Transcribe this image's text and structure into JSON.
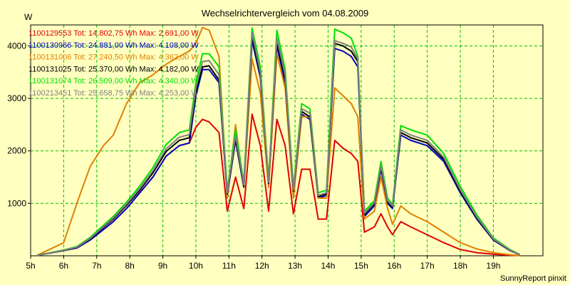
{
  "chart_data": {
    "type": "line",
    "title": "Wechselrichtervergleich vom 04.08.2009",
    "ylabel": "W",
    "xlabel": "",
    "footer": "SunnyReport pinxit",
    "ylim": [
      0,
      4400
    ],
    "xlim": [
      5,
      20.5
    ],
    "y_ticks": [
      1000,
      2000,
      3000,
      4000
    ],
    "x_ticks": [
      {
        "x": 5,
        "label": "5h"
      },
      {
        "x": 6,
        "label": "6h"
      },
      {
        "x": 7,
        "label": "7h"
      },
      {
        "x": 8,
        "label": "8h"
      },
      {
        "x": 9,
        "label": "9h"
      },
      {
        "x": 10,
        "label": "10h"
      },
      {
        "x": 11,
        "label": "11h"
      },
      {
        "x": 12,
        "label": "12h"
      },
      {
        "x": 13,
        "label": "13h"
      },
      {
        "x": 14,
        "label": "14h"
      },
      {
        "x": 15,
        "label": "15h"
      },
      {
        "x": 16,
        "label": "16h"
      },
      {
        "x": 17,
        "label": "17h"
      },
      {
        "x": 18,
        "label": "18h"
      },
      {
        "x": 19,
        "label": "19h"
      }
    ],
    "grid": true,
    "legend_position": "top-left",
    "series": [
      {
        "name": "1100129553 Tot: 14.802,75 Wh Max: 2.691,00 W",
        "color": "#e00000",
        "x": [
          5.2,
          6.0,
          6.4,
          6.8,
          7.2,
          7.5,
          7.9,
          8.3,
          8.7,
          9.1,
          9.5,
          9.8,
          10.0,
          10.2,
          10.4,
          10.7,
          10.95,
          11.2,
          11.45,
          11.7,
          11.95,
          12.2,
          12.45,
          12.7,
          12.95,
          13.2,
          13.45,
          13.7,
          13.95,
          14.2,
          14.45,
          14.7,
          14.9,
          15.1,
          15.4,
          15.6,
          15.8,
          15.95,
          16.2,
          16.5,
          17.0,
          17.5,
          18.0,
          18.5,
          19.0,
          19.5,
          19.8
        ],
        "y": [
          10,
          100,
          150,
          300,
          500,
          650,
          900,
          1200,
          1500,
          1900,
          2100,
          2150,
          2450,
          2600,
          2550,
          2350,
          850,
          1500,
          900,
          2700,
          2100,
          850,
          2600,
          2100,
          800,
          1650,
          1650,
          700,
          700,
          2200,
          2050,
          1950,
          1800,
          450,
          550,
          800,
          550,
          400,
          650,
          550,
          400,
          250,
          120,
          60,
          30,
          10,
          5
        ]
      },
      {
        "name": "1100130966 Tot: 24.881,00 Wh Max: 4.108,00 W",
        "color": "#0000c0",
        "x": [
          5.2,
          6.0,
          6.4,
          6.8,
          7.2,
          7.5,
          7.9,
          8.3,
          8.7,
          9.1,
          9.5,
          9.8,
          10.0,
          10.2,
          10.4,
          10.7,
          10.95,
          11.2,
          11.45,
          11.7,
          11.95,
          12.2,
          12.45,
          12.7,
          12.95,
          13.2,
          13.45,
          13.7,
          13.95,
          14.2,
          14.45,
          14.7,
          14.9,
          15.1,
          15.4,
          15.6,
          15.8,
          15.95,
          16.2,
          16.5,
          17.0,
          17.5,
          18.0,
          18.5,
          19.0,
          19.5,
          19.8
        ],
        "y": [
          10,
          100,
          150,
          300,
          500,
          650,
          900,
          1200,
          1500,
          1900,
          2100,
          2150,
          3050,
          3550,
          3550,
          3300,
          1150,
          2200,
          1300,
          4100,
          3400,
          1350,
          4000,
          3300,
          1200,
          2700,
          2600,
          1100,
          1150,
          3950,
          3900,
          3800,
          3600,
          750,
          950,
          1650,
          1000,
          900,
          2300,
          2200,
          2100,
          1800,
          1200,
          700,
          300,
          100,
          20
        ]
      },
      {
        "name": "1100131006 Tot: 27.240,50 Wh Max: 4.362,00 W",
        "color": "#e08000",
        "x": [
          5.2,
          6.0,
          6.4,
          6.8,
          7.2,
          7.5,
          7.9,
          8.3,
          8.7,
          9.1,
          9.5,
          9.8,
          10.0,
          10.2,
          10.4,
          10.7,
          10.95,
          11.2,
          11.45,
          11.7,
          11.95,
          12.2,
          12.45,
          12.7,
          12.95,
          13.2,
          13.45,
          13.7,
          13.95,
          14.2,
          14.45,
          14.7,
          14.9,
          15.1,
          15.4,
          15.6,
          15.8,
          15.95,
          16.2,
          16.5,
          17.0,
          17.5,
          18.0,
          18.5,
          19.0,
          19.5,
          19.8
        ],
        "y": [
          10,
          250,
          1000,
          1700,
          2100,
          2300,
          2900,
          3300,
          3450,
          3650,
          3800,
          3900,
          4050,
          4350,
          4300,
          3800,
          1100,
          2500,
          1300,
          3750,
          3100,
          1300,
          3850,
          3200,
          1100,
          2650,
          2650,
          1100,
          1100,
          3200,
          3050,
          2900,
          2650,
          700,
          850,
          1500,
          900,
          600,
          950,
          800,
          650,
          450,
          250,
          130,
          60,
          20,
          5
        ]
      },
      {
        "name": "1100131025 Tot: 25.370,00 Wh Max: 4.182,00 W",
        "color": "#000000",
        "x": [
          5.2,
          6.0,
          6.4,
          6.8,
          7.2,
          7.5,
          7.9,
          8.3,
          8.7,
          9.1,
          9.5,
          9.8,
          10.0,
          10.2,
          10.4,
          10.7,
          10.95,
          11.2,
          11.45,
          11.7,
          11.95,
          12.2,
          12.45,
          12.7,
          12.95,
          13.2,
          13.45,
          13.7,
          13.95,
          14.2,
          14.45,
          14.7,
          14.9,
          15.1,
          15.4,
          15.6,
          15.8,
          15.95,
          16.2,
          16.5,
          17.0,
          17.5,
          18.0,
          18.5,
          19.0,
          19.5,
          19.8
        ],
        "y": [
          10,
          100,
          160,
          320,
          540,
          700,
          960,
          1250,
          1580,
          1990,
          2200,
          2250,
          3120,
          3600,
          3620,
          3350,
          1180,
          2250,
          1320,
          4180,
          3450,
          1380,
          4080,
          3380,
          1230,
          2750,
          2650,
          1130,
          1180,
          4050,
          4000,
          3900,
          3700,
          790,
          990,
          1690,
          1030,
          930,
          2350,
          2250,
          2150,
          1840,
          1230,
          720,
          310,
          105,
          22
        ]
      },
      {
        "name": "1100131074 Tot: 26.509,00 Wh Max: 4.340,00 W",
        "color": "#00e000",
        "x": [
          5.2,
          6.0,
          6.4,
          6.8,
          7.2,
          7.5,
          7.9,
          8.3,
          8.7,
          9.1,
          9.5,
          9.8,
          10.0,
          10.2,
          10.4,
          10.7,
          10.95,
          11.2,
          11.45,
          11.7,
          11.95,
          12.2,
          12.45,
          12.7,
          12.95,
          13.2,
          13.45,
          13.7,
          13.95,
          14.2,
          14.45,
          14.7,
          14.9,
          15.1,
          15.4,
          15.6,
          15.8,
          15.95,
          16.2,
          16.5,
          17.0,
          17.5,
          18.0,
          18.5,
          19.0,
          19.5,
          19.8
        ],
        "y": [
          10,
          110,
          175,
          350,
          580,
          750,
          1020,
          1330,
          1680,
          2120,
          2350,
          2400,
          3300,
          3850,
          3850,
          3600,
          1250,
          2400,
          1400,
          4340,
          3600,
          1450,
          4300,
          3550,
          1300,
          2900,
          2800,
          1200,
          1250,
          4320,
          4250,
          4150,
          3800,
          850,
          1050,
          1800,
          1100,
          980,
          2480,
          2400,
          2300,
          1950,
          1320,
          780,
          340,
          120,
          25
        ]
      },
      {
        "name": "1100213451 Tot: 25.658,75 Wh Max: 4.253,00 W",
        "color": "#808080",
        "x": [
          5.2,
          6.0,
          6.4,
          6.8,
          7.2,
          7.5,
          7.9,
          8.3,
          8.7,
          9.1,
          9.5,
          9.8,
          10.0,
          10.2,
          10.4,
          10.7,
          10.95,
          11.2,
          11.45,
          11.7,
          11.95,
          12.2,
          12.45,
          12.7,
          12.95,
          13.2,
          13.45,
          13.7,
          13.95,
          14.2,
          14.45,
          14.7,
          14.9,
          15.1,
          15.4,
          15.6,
          15.8,
          15.95,
          16.2,
          16.5,
          17.0,
          17.5,
          18.0,
          18.5,
          19.0,
          19.5,
          19.8
        ],
        "y": [
          10,
          105,
          165,
          330,
          555,
          720,
          985,
          1280,
          1620,
          2040,
          2260,
          2310,
          3200,
          3700,
          3720,
          3450,
          1200,
          2300,
          1350,
          4250,
          3500,
          1400,
          4150,
          3450,
          1250,
          2800,
          2720,
          1150,
          1200,
          4100,
          4050,
          3980,
          3750,
          810,
          1010,
          1720,
          1050,
          950,
          2400,
          2300,
          2200,
          1880,
          1260,
          740,
          320,
          110,
          23
        ]
      }
    ]
  }
}
